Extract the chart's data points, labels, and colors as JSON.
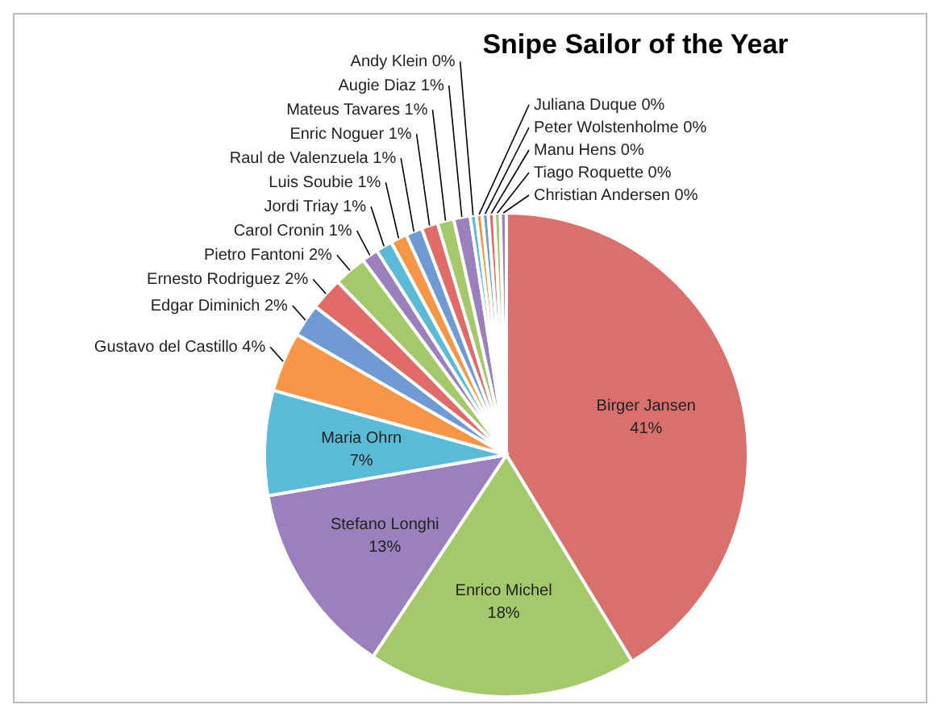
{
  "chart_data": {
    "type": "pie",
    "title": "Snipe Sailor of the Year",
    "categories": [
      "Birger Jansen",
      "Enrico Michel",
      "Stefano Longhi",
      "Maria Ohrn",
      "Gustavo del Castillo",
      "Edgar Diminich",
      "Ernesto Rodriguez",
      "Pietro Fantoni",
      "Carol Cronin",
      "Jordi Triay",
      "Luis Soubie",
      "Raul de Valenzuela",
      "Enric Noguer",
      "Mateus Tavares",
      "Augie Diaz",
      "Andy Klein",
      "Juliana Duque",
      "Peter Wolstenholme",
      "Manu Hens",
      "Tiago Roquette",
      "Christian Andersen"
    ],
    "values": [
      41.3,
      18,
      13,
      7,
      4,
      2.2,
      2.2,
      2.2,
      1.1,
      1.1,
      1.1,
      1.1,
      1.1,
      1.1,
      1.1,
      0.4,
      0.4,
      0.4,
      0.4,
      0.4,
      0.4
    ],
    "value_labels": [
      "41%",
      "18%",
      "13%",
      "7%",
      "4%",
      "2%",
      "2%",
      "2%",
      "1%",
      "1%",
      "1%",
      "1%",
      "1%",
      "1%",
      "1%",
      "0%",
      "0%",
      "0%",
      "0%",
      "0%",
      "0%"
    ],
    "colors": [
      "#d9706d",
      "#a5c86a",
      "#9a80bd",
      "#5bbbd6",
      "#f79646",
      "#6f9ad4",
      "#e06b68",
      "#a5c86a",
      "#9a80bd",
      "#5bbbd6",
      "#f79646",
      "#6f9ad4",
      "#e06b68",
      "#a5c86a",
      "#9a80bd",
      "#5bbbd6",
      "#f79646",
      "#6f9ad4",
      "#e06b68",
      "#a5c86a",
      "#9a80bd"
    ],
    "legend": false
  }
}
